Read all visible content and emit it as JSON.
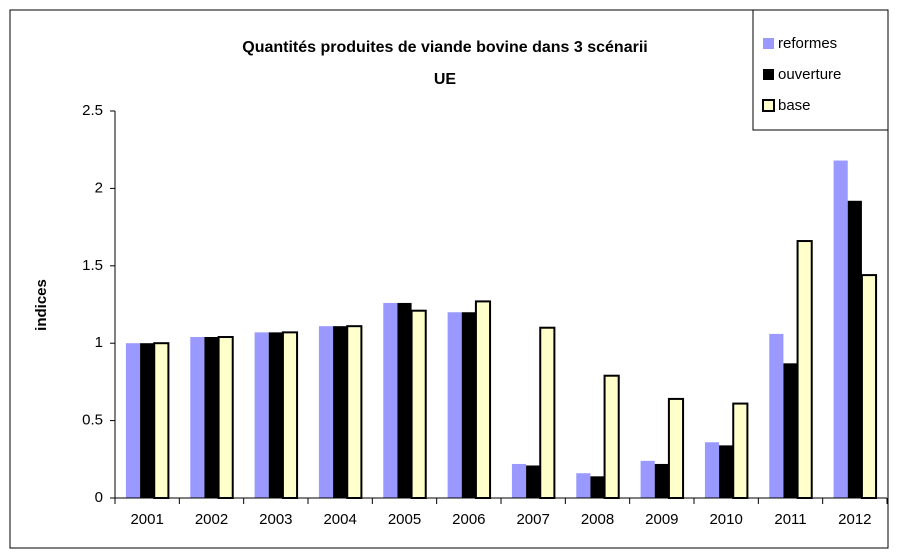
{
  "chart_data": {
    "type": "bar",
    "title": [
      "Quantités produites de viande bovine dans 3 scénarii",
      "UE"
    ],
    "y_label": "indices",
    "categories": [
      "2001",
      "2002",
      "2003",
      "2004",
      "2005",
      "2006",
      "2007",
      "2008",
      "2009",
      "2010",
      "2011",
      "2012"
    ],
    "series": [
      {
        "name": "reformes",
        "color": "#9999ff",
        "values": [
          1.0,
          1.04,
          1.07,
          1.11,
          1.26,
          1.2,
          0.22,
          0.16,
          0.24,
          0.36,
          1.06,
          2.18
        ]
      },
      {
        "name": "ouverture",
        "color": "#000000",
        "values": [
          1.0,
          1.04,
          1.07,
          1.11,
          1.26,
          1.2,
          0.21,
          0.14,
          0.22,
          0.34,
          0.87,
          1.92
        ]
      },
      {
        "name": "base",
        "color": "#ffffcc",
        "values": [
          1.0,
          1.04,
          1.07,
          1.11,
          1.21,
          1.27,
          1.1,
          0.79,
          0.64,
          0.61,
          1.66,
          1.44
        ]
      }
    ],
    "ylim": [
      0,
      2.5
    ],
    "yticks": [
      0,
      0.5,
      1,
      1.5,
      2,
      2.5
    ],
    "grid": false,
    "legend": "top-right"
  }
}
